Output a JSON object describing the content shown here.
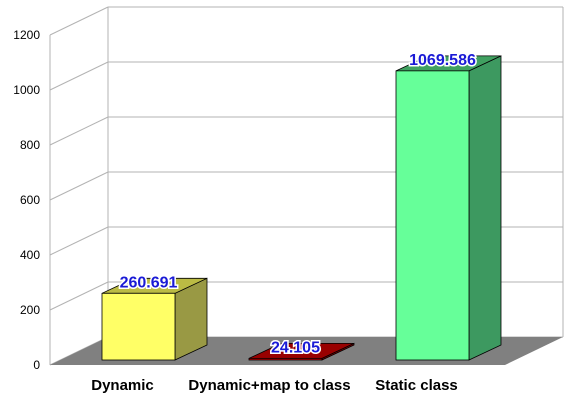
{
  "chart_data": {
    "type": "bar",
    "style": "3d",
    "categories": [
      "Dynamic",
      "Dynamic+map to class",
      "Static class"
    ],
    "values": [
      260.691,
      24.105,
      1069.586
    ],
    "data_labels": [
      "260.691",
      "24.105",
      "1069.586"
    ],
    "ylim": [
      0,
      1200
    ],
    "yticks": [
      0,
      200,
      400,
      600,
      800,
      1000,
      1200
    ],
    "grid": true,
    "legend": "none",
    "colors": {
      "bars": [
        "#ffff66",
        "#cc0000",
        "#66ff99"
      ],
      "bar_sides": [
        "#999944",
        "#880000",
        "#3d9960"
      ],
      "bar_tops": [
        "#bbbb44",
        "#990000",
        "#40a060"
      ],
      "floor": "#808080",
      "grid": "#b3b3b3",
      "data_label": "#1a1ad6"
    }
  }
}
